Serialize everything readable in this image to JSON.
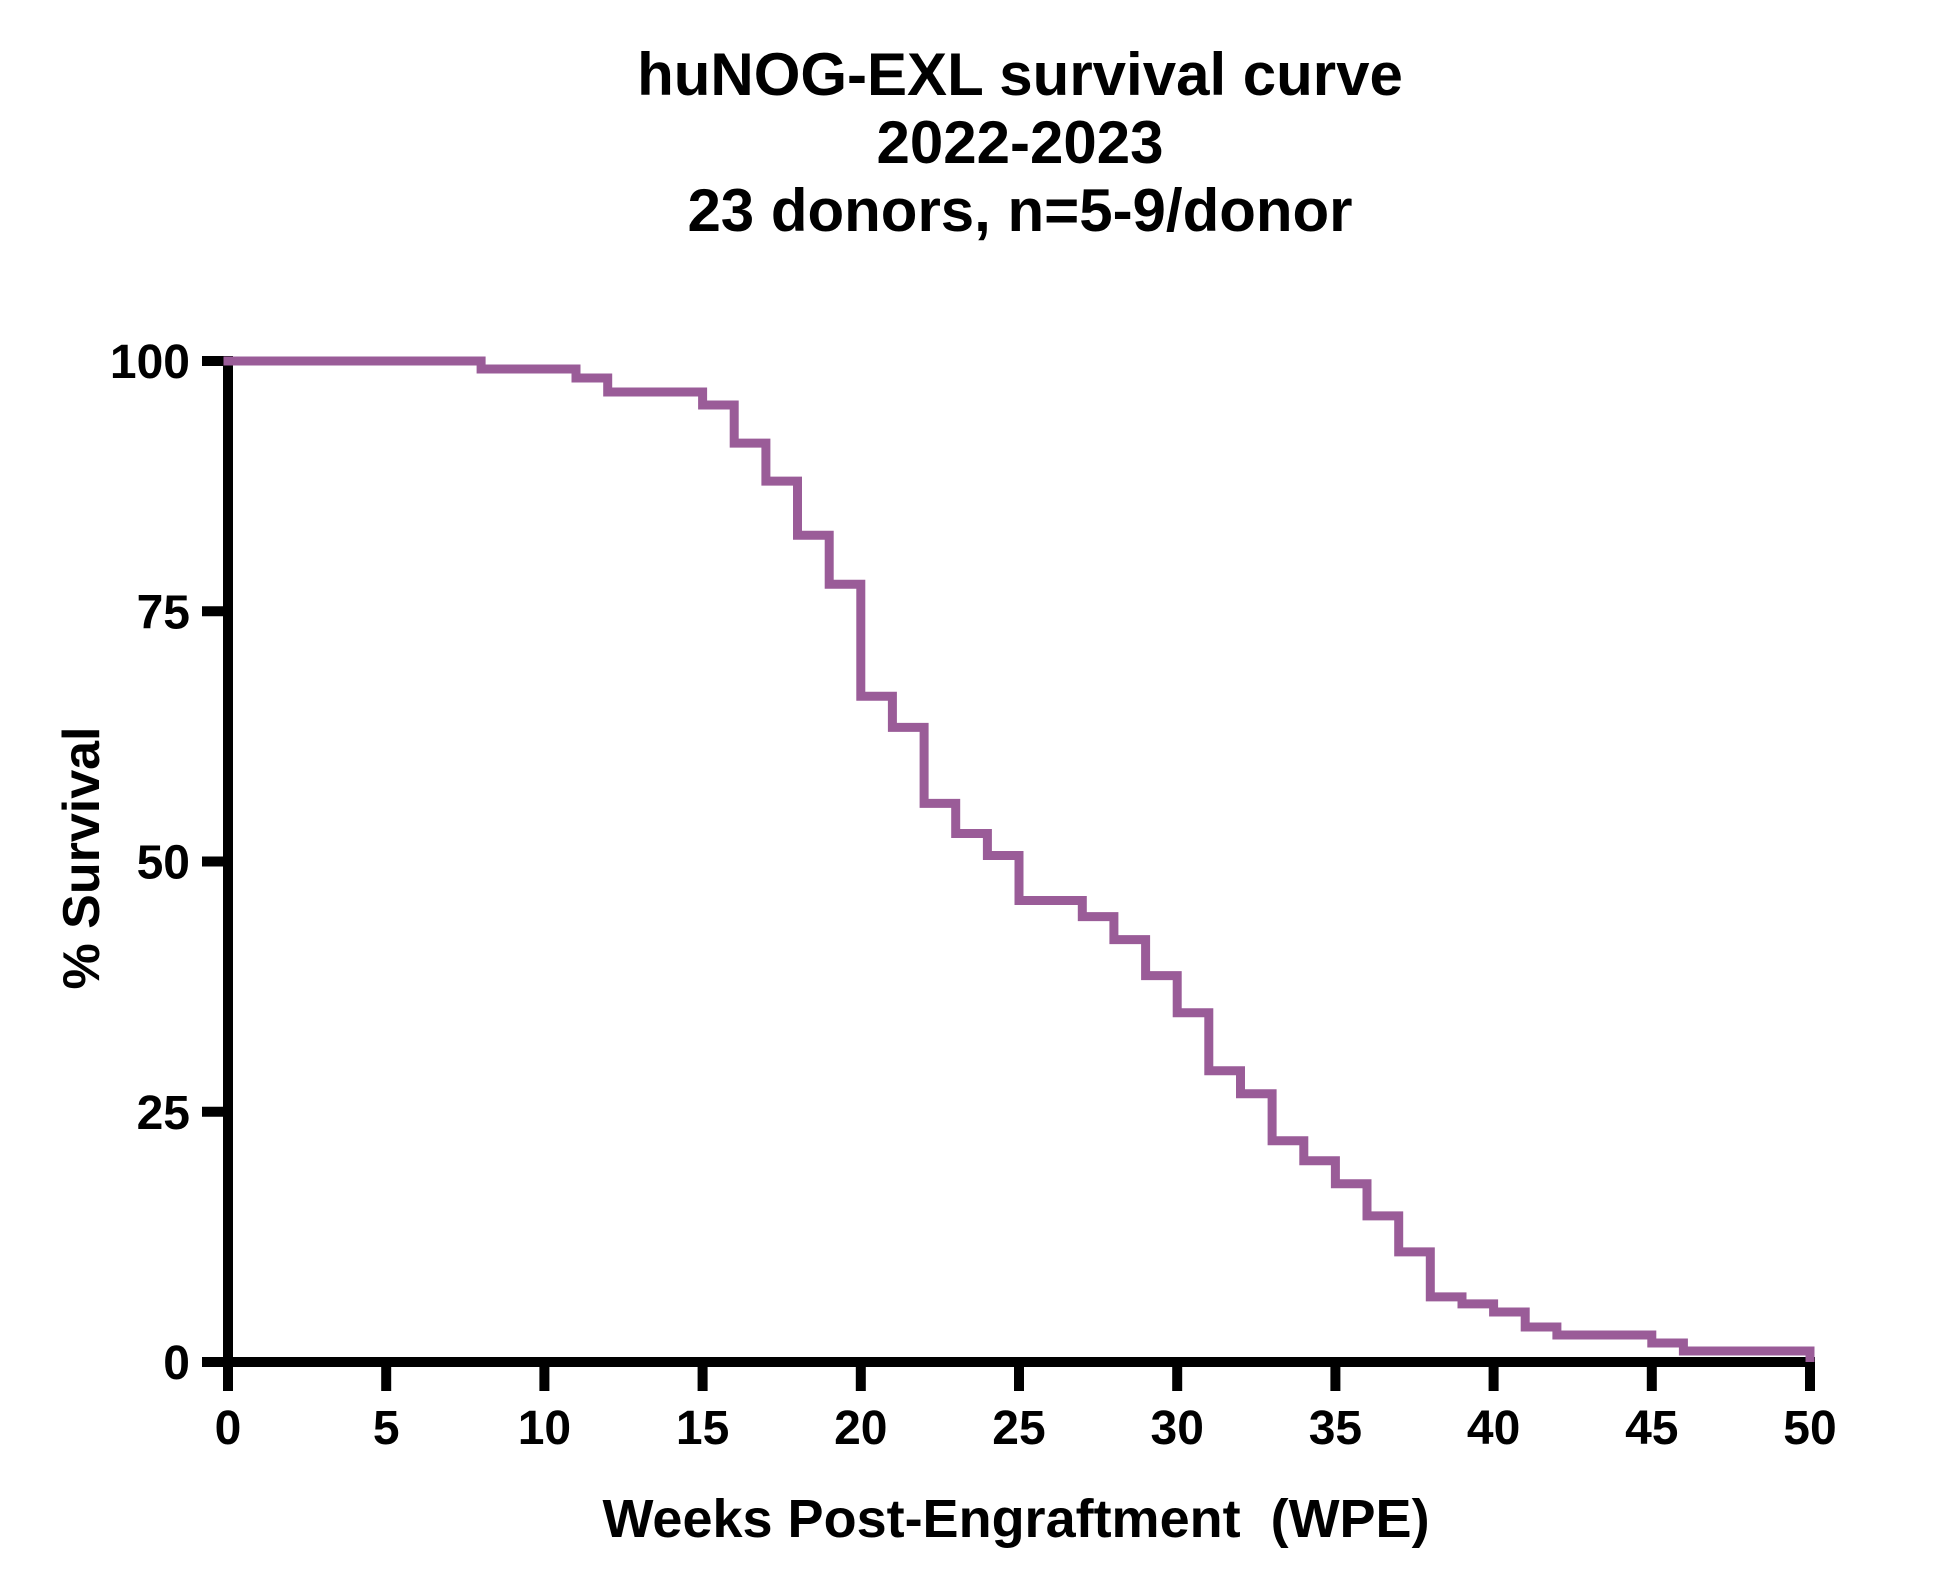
{
  "title": {
    "line1": "huNOG-EXL survival curve",
    "line2": "2022-2023",
    "line3": "23 donors, n=5-9/donor"
  },
  "x_axis": {
    "label": "Weeks Post-Engraftment  (WPE)",
    "ticks": [
      0,
      5,
      10,
      15,
      20,
      25,
      30,
      35,
      40,
      45,
      50
    ],
    "min": 0,
    "max": 50
  },
  "y_axis": {
    "label": "% Survival",
    "ticks": [
      0,
      25,
      50,
      75,
      100
    ],
    "min": 0,
    "max": 100
  },
  "colors": {
    "curve": "#9a5c98",
    "axis": "#000000",
    "text": "#000000",
    "background": "#ffffff"
  },
  "chart_data": {
    "type": "line",
    "subtype": "kaplan-meier-step",
    "title": "huNOG-EXL survival curve 2022-2023, 23 donors, n=5-9/donor",
    "xlabel": "Weeks Post-Engraftment (WPE)",
    "ylabel": "% Survival",
    "xlim": [
      0,
      50
    ],
    "ylim": [
      0,
      100
    ],
    "grid": false,
    "legend": false,
    "series": [
      {
        "name": "survival",
        "steps": [
          [
            0,
            100
          ],
          [
            8,
            99.2
          ],
          [
            11,
            98.3
          ],
          [
            12,
            96.9
          ],
          [
            15,
            95.6
          ],
          [
            16,
            91.8
          ],
          [
            17,
            88.0
          ],
          [
            18,
            82.6
          ],
          [
            19,
            77.7
          ],
          [
            20,
            66.5
          ],
          [
            21,
            63.4
          ],
          [
            22,
            55.8
          ],
          [
            23,
            52.8
          ],
          [
            24,
            50.6
          ],
          [
            25,
            46.1
          ],
          [
            27,
            44.5
          ],
          [
            28,
            42.2
          ],
          [
            29,
            38.6
          ],
          [
            30,
            34.9
          ],
          [
            31,
            29.1
          ],
          [
            32,
            26.8
          ],
          [
            33,
            22.1
          ],
          [
            34,
            20.1
          ],
          [
            35,
            17.8
          ],
          [
            36,
            14.6
          ],
          [
            37,
            11.0
          ],
          [
            38,
            6.5
          ],
          [
            39,
            5.8
          ],
          [
            40,
            5.0
          ],
          [
            41,
            3.5
          ],
          [
            42,
            2.7
          ],
          [
            45,
            1.9
          ],
          [
            46,
            1.1
          ],
          [
            50,
            0
          ]
        ]
      }
    ]
  }
}
